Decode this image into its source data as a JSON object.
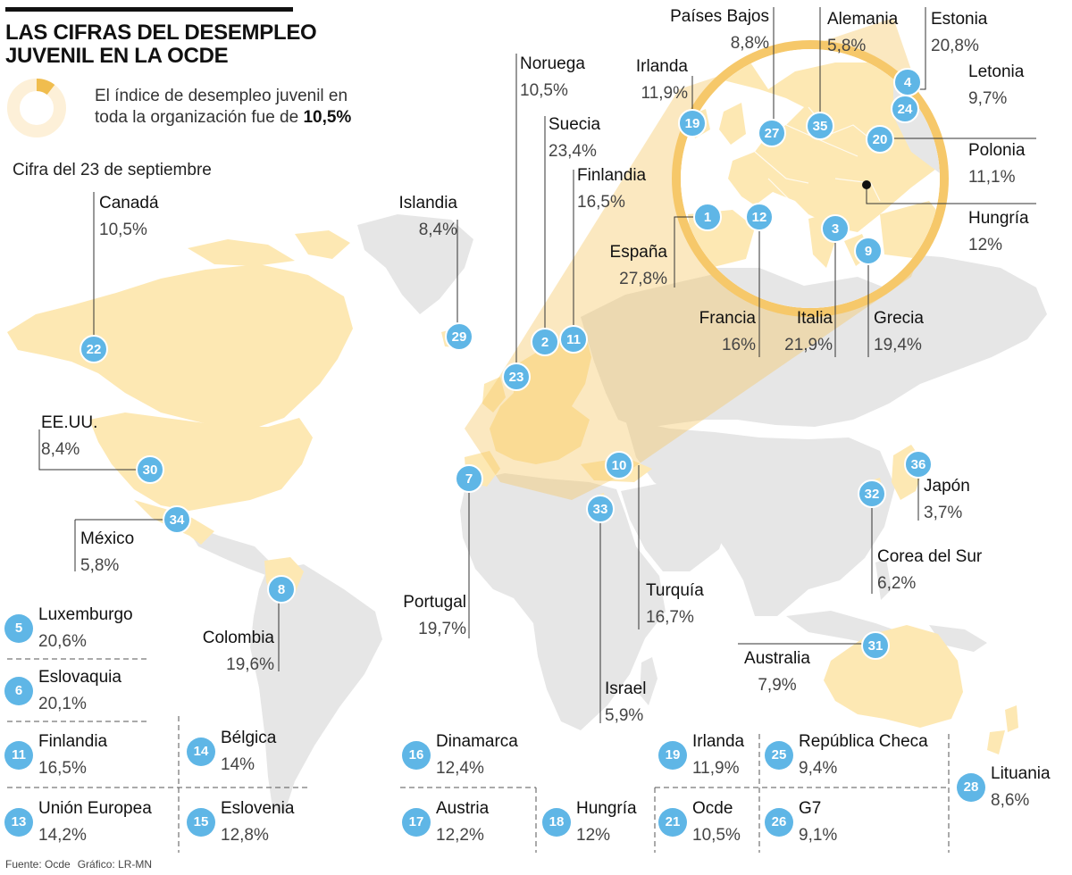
{
  "title": "LAS CIFRAS DEL DESEMPLEO JUVENIL EN LA OCDE",
  "intro": {
    "text": "El índice de desempleo juvenil en toda la organización fue de",
    "value": "10,5%",
    "share": 0.105
  },
  "date_note": "Cifra del 23 de septiembre",
  "source": {
    "fuente": "Fuente: Ocde",
    "grafico": "Gráfico: LR-MN"
  },
  "colors": {
    "oecd_land": "#fde8b3",
    "other_land": "#e6e6e6",
    "ocean": "#ffffff",
    "badge": "#5fb6e6",
    "highlight": "#f6c86a",
    "donut_track": "#fdf0d8",
    "leader": "#333333"
  },
  "map_labels": [
    {
      "rank": "22",
      "name": "Canadá",
      "value": "10,5%"
    },
    {
      "rank": "29",
      "name": "Islandia",
      "value": "8,4%"
    },
    {
      "rank": "30",
      "name": "EE.UU.",
      "value": "8,4%"
    },
    {
      "rank": "34",
      "name": "México",
      "value": "5,8%"
    },
    {
      "rank": "8",
      "name": "Colombia",
      "value": "19,6%"
    },
    {
      "rank": "23",
      "name": "Noruega",
      "value": "10,5%"
    },
    {
      "rank": "2",
      "name": "Suecia",
      "value": "23,4%"
    },
    {
      "rank": "11",
      "name": "Finlandia",
      "value": "16,5%"
    },
    {
      "rank": "19",
      "name": "Irlanda",
      "value": "11,9%"
    },
    {
      "rank": "27",
      "name": "Países Bajos",
      "value": "8,8%"
    },
    {
      "rank": "35",
      "name": "Alemania",
      "value": "5,8%"
    },
    {
      "rank": "4",
      "name": "Estonia",
      "value": "20,8%"
    },
    {
      "rank": "24",
      "name": "Letonia",
      "value": "9,7%"
    },
    {
      "rank": "20",
      "name": "Polonia",
      "value": "11,1%"
    },
    {
      "rank": "",
      "name": "Hungría",
      "value": "12%"
    },
    {
      "rank": "1",
      "name": "España",
      "value": "27,8%"
    },
    {
      "rank": "12",
      "name": "Francia",
      "value": "16%"
    },
    {
      "rank": "3",
      "name": "Italia",
      "value": "21,9%"
    },
    {
      "rank": "9",
      "name": "Grecia",
      "value": "19,4%"
    },
    {
      "rank": "7",
      "name": "Portugal",
      "value": "19,7%"
    },
    {
      "rank": "10",
      "name": "Turquía",
      "value": "16,7%"
    },
    {
      "rank": "33",
      "name": "Israel",
      "value": "5,9%"
    },
    {
      "rank": "36",
      "name": "Japón",
      "value": "3,7%"
    },
    {
      "rank": "32",
      "name": "Corea del Sur",
      "value": "6,2%"
    },
    {
      "rank": "31",
      "name": "Australia",
      "value": "7,9%"
    }
  ],
  "ref_list": [
    {
      "rank": "5",
      "name": "Luxemburgo",
      "value": "20,6%"
    },
    {
      "rank": "6",
      "name": "Eslovaquia",
      "value": "20,1%"
    },
    {
      "rank": "11",
      "name": "Finlandia",
      "value": "16,5%"
    },
    {
      "rank": "13",
      "name": "Unión Europea",
      "value": "14,2%"
    },
    {
      "rank": "14",
      "name": "Bélgica",
      "value": "14%"
    },
    {
      "rank": "15",
      "name": "Eslovenia",
      "value": "12,8%"
    },
    {
      "rank": "16",
      "name": "Dinamarca",
      "value": "12,4%"
    },
    {
      "rank": "17",
      "name": "Austria",
      "value": "12,2%"
    },
    {
      "rank": "18",
      "name": "Hungría",
      "value": "12%"
    },
    {
      "rank": "19",
      "name": "Irlanda",
      "value": "11,9%"
    },
    {
      "rank": "21",
      "name": "Ocde",
      "value": "10,5%"
    },
    {
      "rank": "25",
      "name": "República Checa",
      "value": "9,4%"
    },
    {
      "rank": "26",
      "name": "G7",
      "value": "9,1%"
    },
    {
      "rank": "28",
      "name": "Lituania",
      "value": "8,6%"
    }
  ]
}
